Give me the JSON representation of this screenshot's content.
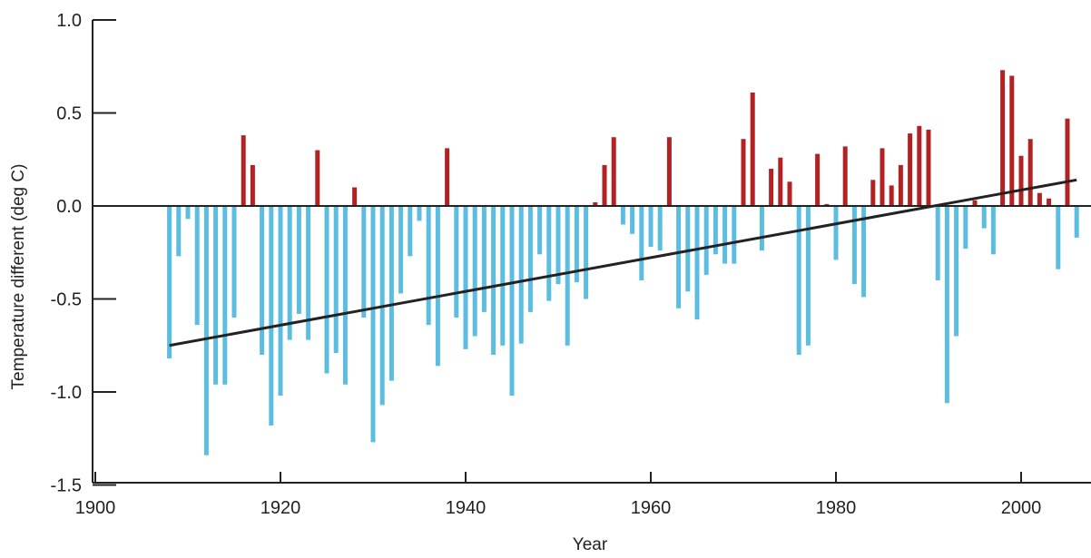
{
  "chart_data": {
    "type": "bar",
    "xlabel": "Year",
    "ylabel": "Temperature different (deg C)",
    "xlim": [
      1900,
      2010
    ],
    "ylim": [
      -1.5,
      1.0
    ],
    "x_ticks": [
      "1900",
      "1920",
      "1940",
      "1960",
      "1980",
      "2000"
    ],
    "y_ticks": [
      "1.0",
      "0.5",
      "0.0",
      "-0.5",
      "-1.0",
      "-1.5"
    ],
    "grid": false,
    "x": [
      1908,
      1909,
      1910,
      1911,
      1912,
      1913,
      1914,
      1915,
      1916,
      1917,
      1918,
      1919,
      1920,
      1921,
      1922,
      1923,
      1924,
      1925,
      1926,
      1927,
      1928,
      1929,
      1930,
      1931,
      1932,
      1933,
      1934,
      1935,
      1936,
      1937,
      1938,
      1939,
      1940,
      1941,
      1942,
      1943,
      1944,
      1945,
      1946,
      1947,
      1948,
      1949,
      1950,
      1951,
      1952,
      1953,
      1954,
      1955,
      1956,
      1957,
      1958,
      1959,
      1960,
      1961,
      1962,
      1963,
      1964,
      1965,
      1966,
      1967,
      1968,
      1969,
      1970,
      1971,
      1972,
      1973,
      1974,
      1975,
      1976,
      1977,
      1978,
      1979,
      1980,
      1981,
      1982,
      1983,
      1984,
      1985,
      1986,
      1987,
      1988,
      1989,
      1990,
      1991,
      1992,
      1993,
      1994,
      1995,
      1996,
      1997,
      1998,
      1999,
      2000,
      2001,
      2002,
      2003,
      2004,
      2005,
      2006
    ],
    "values": [
      -0.82,
      -0.27,
      -0.07,
      -0.64,
      -1.34,
      -0.96,
      -0.96,
      -0.6,
      0.38,
      0.22,
      -0.8,
      -1.18,
      -1.02,
      -0.72,
      -0.58,
      -0.72,
      0.3,
      -0.9,
      -0.79,
      -0.96,
      0.1,
      -0.6,
      -1.27,
      -1.07,
      -0.94,
      -0.47,
      -0.27,
      -0.08,
      -0.64,
      -0.86,
      0.31,
      -0.6,
      -0.77,
      -0.7,
      -0.57,
      -0.8,
      -0.75,
      -1.02,
      -0.74,
      -0.57,
      -0.26,
      -0.51,
      -0.42,
      -0.75,
      -0.41,
      -0.5,
      0.02,
      0.22,
      0.37,
      -0.1,
      -0.15,
      -0.4,
      -0.22,
      -0.24,
      0.37,
      -0.55,
      -0.46,
      -0.61,
      -0.37,
      -0.26,
      -0.31,
      -0.31,
      0.36,
      0.61,
      -0.24,
      0.2,
      0.26,
      0.13,
      -0.8,
      -0.75,
      0.28,
      0.01,
      -0.29,
      0.32,
      -0.42,
      -0.49,
      0.14,
      0.31,
      0.11,
      0.22,
      0.39,
      0.43,
      0.41,
      -0.4,
      -1.06,
      -0.7,
      -0.23,
      0.03,
      -0.12,
      -0.26,
      0.73,
      0.7,
      0.27,
      0.36,
      0.07,
      0.04,
      -0.34,
      0.47,
      -0.17
    ],
    "trend": {
      "x": [
        1908,
        2006
      ],
      "y": [
        -0.75,
        0.14
      ]
    },
    "colors": {
      "positive": "#b22222",
      "negative": "#5bbde0",
      "trend": "#222222",
      "axis": "#222222"
    }
  }
}
